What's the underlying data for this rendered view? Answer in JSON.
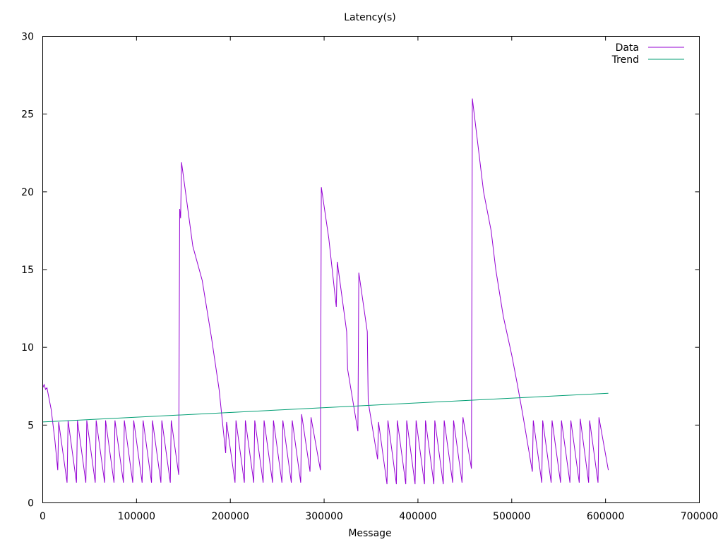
{
  "chart_data": {
    "type": "line",
    "title": "Latency(s)",
    "xlabel": "Message",
    "ylabel": "",
    "xlim": [
      0,
      700000
    ],
    "ylim": [
      0,
      30
    ],
    "xticks": [
      0,
      100000,
      200000,
      300000,
      400000,
      500000,
      600000,
      700000
    ],
    "xtick_labels": [
      "0",
      "100000",
      "200000",
      "300000",
      "400000",
      "500000",
      "600000",
      "700000"
    ],
    "yticks": [
      0,
      5,
      10,
      15,
      20,
      25,
      30
    ],
    "ytick_labels": [
      "0",
      "5",
      "10",
      "15",
      "20",
      "25",
      "30"
    ],
    "grid": false,
    "legend": "top-right",
    "series": [
      {
        "name": "Data",
        "color": "#9400d3",
        "points": [
          [
            0,
            7.4
          ],
          [
            1500,
            7.6
          ],
          [
            3000,
            7.3
          ],
          [
            4500,
            7.4
          ],
          [
            9000,
            6.0
          ],
          [
            13000,
            4.0
          ],
          [
            16000,
            2.1
          ],
          [
            17000,
            5.2
          ],
          [
            26000,
            1.3
          ],
          [
            27000,
            5.3
          ],
          [
            36000,
            1.3
          ],
          [
            37000,
            5.3
          ],
          [
            46000,
            1.3
          ],
          [
            47000,
            5.3
          ],
          [
            56000,
            1.3
          ],
          [
            57000,
            5.3
          ],
          [
            66000,
            1.3
          ],
          [
            67000,
            5.3
          ],
          [
            76000,
            1.3
          ],
          [
            77000,
            5.3
          ],
          [
            86000,
            1.3
          ],
          [
            87000,
            5.3
          ],
          [
            96000,
            1.3
          ],
          [
            97000,
            5.3
          ],
          [
            106000,
            1.3
          ],
          [
            107000,
            5.3
          ],
          [
            116000,
            1.3
          ],
          [
            117000,
            5.3
          ],
          [
            126000,
            1.3
          ],
          [
            127000,
            5.3
          ],
          [
            136000,
            1.3
          ],
          [
            137000,
            5.3
          ],
          [
            145000,
            1.8
          ],
          [
            146000,
            18.9
          ],
          [
            147000,
            18.3
          ],
          [
            148000,
            21.9
          ],
          [
            160000,
            16.5
          ],
          [
            170000,
            14.3
          ],
          [
            180000,
            10.6
          ],
          [
            188000,
            7.3
          ],
          [
            195000,
            3.2
          ],
          [
            196000,
            5.2
          ],
          [
            205000,
            1.3
          ],
          [
            206000,
            5.3
          ],
          [
            215000,
            1.3
          ],
          [
            216000,
            5.3
          ],
          [
            225000,
            1.3
          ],
          [
            226000,
            5.3
          ],
          [
            235000,
            1.3
          ],
          [
            236000,
            5.3
          ],
          [
            245000,
            1.3
          ],
          [
            246000,
            5.3
          ],
          [
            255000,
            1.3
          ],
          [
            256000,
            5.3
          ],
          [
            265000,
            1.3
          ],
          [
            266000,
            5.3
          ],
          [
            275000,
            1.3
          ],
          [
            276000,
            5.7
          ],
          [
            285000,
            2.0
          ],
          [
            286000,
            5.5
          ],
          [
            296000,
            2.1
          ],
          [
            297000,
            20.3
          ],
          [
            305000,
            17.0
          ],
          [
            313000,
            12.6
          ],
          [
            314000,
            15.5
          ],
          [
            324000,
            11.0
          ],
          [
            325000,
            8.6
          ],
          [
            336000,
            4.6
          ],
          [
            337000,
            14.8
          ],
          [
            346000,
            11.0
          ],
          [
            347000,
            6.5
          ],
          [
            357000,
            2.8
          ],
          [
            358000,
            5.2
          ],
          [
            367000,
            1.2
          ],
          [
            368000,
            5.3
          ],
          [
            377000,
            1.2
          ],
          [
            378000,
            5.3
          ],
          [
            387000,
            1.2
          ],
          [
            388000,
            5.3
          ],
          [
            397000,
            1.2
          ],
          [
            398000,
            5.3
          ],
          [
            407000,
            1.2
          ],
          [
            408000,
            5.3
          ],
          [
            417000,
            1.2
          ],
          [
            418000,
            5.3
          ],
          [
            427000,
            1.2
          ],
          [
            428000,
            5.3
          ],
          [
            437000,
            1.3
          ],
          [
            438000,
            5.3
          ],
          [
            447000,
            1.3
          ],
          [
            448000,
            5.5
          ],
          [
            457000,
            2.2
          ],
          [
            458000,
            26.0
          ],
          [
            470000,
            20.0
          ],
          [
            478000,
            17.5
          ],
          [
            483000,
            15.0
          ],
          [
            491000,
            12.0
          ],
          [
            500000,
            9.5
          ],
          [
            506000,
            7.6
          ],
          [
            512000,
            5.6
          ],
          [
            522000,
            2.0
          ],
          [
            523000,
            5.3
          ],
          [
            532000,
            1.3
          ],
          [
            533000,
            5.3
          ],
          [
            542000,
            1.3
          ],
          [
            543000,
            5.3
          ],
          [
            552000,
            1.3
          ],
          [
            553000,
            5.3
          ],
          [
            562000,
            1.3
          ],
          [
            563000,
            5.3
          ],
          [
            572000,
            1.3
          ],
          [
            573000,
            5.4
          ],
          [
            582000,
            1.3
          ],
          [
            583000,
            5.3
          ],
          [
            592000,
            1.3
          ],
          [
            593000,
            5.5
          ],
          [
            603000,
            2.1
          ]
        ]
      },
      {
        "name": "Trend",
        "color": "#009e73",
        "points": [
          [
            0,
            5.2
          ],
          [
            603000,
            7.05
          ]
        ]
      }
    ]
  }
}
